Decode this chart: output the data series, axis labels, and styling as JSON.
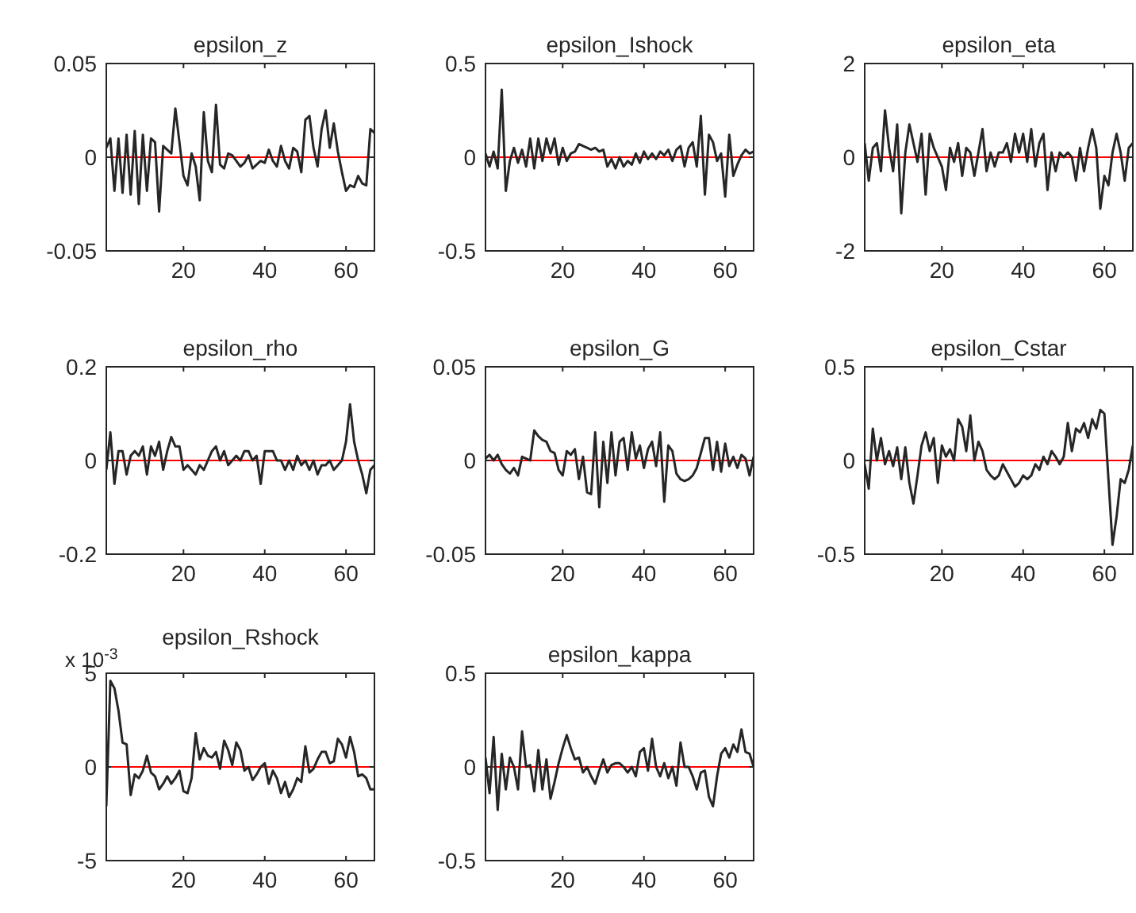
{
  "chart_data": [
    {
      "type": "line",
      "title": "epsilon_z",
      "x": [
        1,
        2,
        3,
        4,
        5,
        6,
        7,
        8,
        9,
        10,
        11,
        12,
        13,
        14,
        15,
        16,
        17,
        18,
        19,
        20,
        21,
        22,
        23,
        24,
        25,
        26,
        27,
        28,
        29,
        30,
        31,
        32,
        33,
        34,
        35,
        36,
        37,
        38,
        39,
        40,
        41,
        42,
        43,
        44,
        45,
        46,
        47,
        48,
        49,
        50,
        51,
        52,
        53,
        54,
        55,
        56,
        57,
        58,
        59,
        60,
        61,
        62,
        63,
        64,
        65,
        66,
        67
      ],
      "xlim": [
        1,
        67
      ],
      "xticks": [
        20,
        40,
        60
      ],
      "ylim": [
        -0.05,
        0.05
      ],
      "yticks": [
        -0.05,
        0,
        0.05
      ],
      "ref_lines": [
        {
          "axis": "y",
          "value": 0,
          "color": "#ff0000"
        }
      ],
      "series": [
        {
          "color": "#262626",
          "values": [
            0.005,
            0.01,
            -0.018,
            0.01,
            -0.019,
            0.012,
            -0.02,
            0.014,
            -0.025,
            0.012,
            -0.018,
            0.01,
            0.008,
            -0.029,
            0.006,
            0.004,
            0.002,
            0.026,
            0.008,
            -0.01,
            -0.015,
            0.002,
            -0.005,
            -0.023,
            0.024,
            -0.002,
            -0.008,
            0.028,
            -0.004,
            -0.006,
            0.002,
            0.001,
            -0.002,
            -0.005,
            -0.003,
            0.001,
            -0.006,
            -0.004,
            -0.002,
            -0.003,
            0.004,
            -0.002,
            -0.005,
            0.006,
            -0.002,
            -0.006,
            0.005,
            0.003,
            -0.008,
            0.02,
            0.022,
            0.005,
            -0.005,
            0.015,
            0.025,
            0.005,
            0.018,
            0.003,
            -0.008,
            -0.018,
            -0.015,
            -0.016,
            -0.01,
            -0.014,
            -0.015,
            0.015,
            0.013
          ]
        }
      ]
    },
    {
      "type": "line",
      "title": "epsilon_Ishock",
      "x": [
        1,
        2,
        3,
        4,
        5,
        6,
        7,
        8,
        9,
        10,
        11,
        12,
        13,
        14,
        15,
        16,
        17,
        18,
        19,
        20,
        21,
        22,
        23,
        24,
        25,
        26,
        27,
        28,
        29,
        30,
        31,
        32,
        33,
        34,
        35,
        36,
        37,
        38,
        39,
        40,
        41,
        42,
        43,
        44,
        45,
        46,
        47,
        48,
        49,
        50,
        51,
        52,
        53,
        54,
        55,
        56,
        57,
        58,
        59,
        60,
        61,
        62,
        63,
        64,
        65,
        66,
        67
      ],
      "xlim": [
        1,
        67
      ],
      "xticks": [
        20,
        40,
        60
      ],
      "ylim": [
        -0.5,
        0.5
      ],
      "yticks": [
        -0.5,
        0,
        0.5
      ],
      "ref_lines": [
        {
          "axis": "y",
          "value": 0,
          "color": "#ff0000"
        }
      ],
      "series": [
        {
          "color": "#262626",
          "values": [
            0.02,
            -0.05,
            0.03,
            -0.06,
            0.36,
            -0.18,
            -0.02,
            0.05,
            -0.03,
            0.04,
            -0.05,
            0.1,
            -0.06,
            0.1,
            -0.02,
            0.1,
            0.02,
            0.1,
            -0.04,
            0.05,
            -0.02,
            0.02,
            0.03,
            0.07,
            0.06,
            0.05,
            0.04,
            0.05,
            0.03,
            0.04,
            -0.05,
            -0.01,
            -0.06,
            0,
            -0.05,
            -0.02,
            -0.04,
            0.02,
            -0.03,
            0.03,
            -0.01,
            0.02,
            -0.01,
            0.03,
            0.01,
            0.04,
            -0.02,
            0.04,
            0.06,
            -0.05,
            0.05,
            0.08,
            -0.05,
            0.22,
            -0.2,
            0.12,
            0.08,
            -0.02,
            0.02,
            -0.21,
            0.12,
            -0.1,
            -0.04,
            0.01,
            0.04,
            0.02,
            0.03
          ]
        }
      ]
    },
    {
      "type": "line",
      "title": "epsilon_eta",
      "x": [
        1,
        2,
        3,
        4,
        5,
        6,
        7,
        8,
        9,
        10,
        11,
        12,
        13,
        14,
        15,
        16,
        17,
        18,
        19,
        20,
        21,
        22,
        23,
        24,
        25,
        26,
        27,
        28,
        29,
        30,
        31,
        32,
        33,
        34,
        35,
        36,
        37,
        38,
        39,
        40,
        41,
        42,
        43,
        44,
        45,
        46,
        47,
        48,
        49,
        50,
        51,
        52,
        53,
        54,
        55,
        56,
        57,
        58,
        59,
        60,
        61,
        62,
        63,
        64,
        65,
        66,
        67
      ],
      "xlim": [
        1,
        67
      ],
      "xticks": [
        20,
        40,
        60
      ],
      "ylim": [
        -2,
        2
      ],
      "yticks": [
        -2,
        0,
        2
      ],
      "ref_lines": [
        {
          "axis": "y",
          "value": 0,
          "color": "#ff0000"
        }
      ],
      "series": [
        {
          "color": "#262626",
          "values": [
            0.3,
            -0.5,
            0.2,
            0.3,
            -0.3,
            1.0,
            0.2,
            -0.3,
            0.7,
            -1.2,
            0.1,
            0.7,
            0.3,
            -0.1,
            0.5,
            -0.8,
            0.5,
            0.2,
            0,
            -0.2,
            -0.7,
            0.2,
            -0.1,
            0.3,
            -0.4,
            0.2,
            0.1,
            -0.4,
            0.1,
            0.6,
            -0.3,
            0.1,
            -0.2,
            0.1,
            0.1,
            0.3,
            -0.1,
            0.5,
            0.1,
            0.5,
            -0.1,
            0.6,
            -0.2,
            0.3,
            0.5,
            -0.7,
            0.1,
            -0.3,
            0.1,
            0,
            0.1,
            0,
            -0.5,
            0.2,
            -0.3,
            0.2,
            0.6,
            0.2,
            -1.1,
            -0.4,
            -0.6,
            0.1,
            0.5,
            0.1,
            -0.5,
            0.2,
            0.3
          ]
        }
      ]
    },
    {
      "type": "line",
      "title": "epsilon_rho",
      "x": [
        1,
        2,
        3,
        4,
        5,
        6,
        7,
        8,
        9,
        10,
        11,
        12,
        13,
        14,
        15,
        16,
        17,
        18,
        19,
        20,
        21,
        22,
        23,
        24,
        25,
        26,
        27,
        28,
        29,
        30,
        31,
        32,
        33,
        34,
        35,
        36,
        37,
        38,
        39,
        40,
        41,
        42,
        43,
        44,
        45,
        46,
        47,
        48,
        49,
        50,
        51,
        52,
        53,
        54,
        55,
        56,
        57,
        58,
        59,
        60,
        61,
        62,
        63,
        64,
        65,
        66,
        67
      ],
      "xlim": [
        1,
        67
      ],
      "xticks": [
        20,
        40,
        60
      ],
      "ylim": [
        -0.2,
        0.2
      ],
      "yticks": [
        -0.2,
        0,
        0.2
      ],
      "ref_lines": [
        {
          "axis": "y",
          "value": 0,
          "color": "#ff0000"
        }
      ],
      "series": [
        {
          "color": "#262626",
          "values": [
            -0.02,
            0.06,
            -0.05,
            0.02,
            0.02,
            -0.03,
            0.01,
            0.02,
            0.01,
            0.03,
            -0.03,
            0.03,
            0.01,
            0.04,
            -0.02,
            0.02,
            0.05,
            0.03,
            0.03,
            -0.02,
            -0.01,
            -0.02,
            -0.03,
            -0.01,
            -0.02,
            0.0,
            0.02,
            0.03,
            0.0,
            0.02,
            -0.01,
            0.0,
            0.01,
            0.0,
            0.02,
            0.02,
            0.0,
            0.01,
            -0.05,
            0.02,
            0.02,
            0.02,
            0.0,
            0.0,
            -0.02,
            0.0,
            -0.02,
            0.01,
            -0.01,
            0.0,
            -0.02,
            0.0,
            -0.03,
            -0.01,
            -0.01,
            0.0,
            -0.02,
            -0.01,
            0.0,
            0.04,
            0.12,
            0.04,
            0.0,
            -0.03,
            -0.07,
            -0.02,
            -0.01
          ]
        }
      ]
    },
    {
      "type": "line",
      "title": "epsilon_G",
      "x": [
        1,
        2,
        3,
        4,
        5,
        6,
        7,
        8,
        9,
        10,
        11,
        12,
        13,
        14,
        15,
        16,
        17,
        18,
        19,
        20,
        21,
        22,
        23,
        24,
        25,
        26,
        27,
        28,
        29,
        30,
        31,
        32,
        33,
        34,
        35,
        36,
        37,
        38,
        39,
        40,
        41,
        42,
        43,
        44,
        45,
        46,
        47,
        48,
        49,
        50,
        51,
        52,
        53,
        54,
        55,
        56,
        57,
        58,
        59,
        60,
        61,
        62,
        63,
        64,
        65,
        66,
        67
      ],
      "xlim": [
        1,
        67
      ],
      "xticks": [
        20,
        40,
        60
      ],
      "ylim": [
        -0.05,
        0.05
      ],
      "yticks": [
        -0.05,
        0,
        0.05
      ],
      "ref_lines": [
        {
          "axis": "y",
          "value": 0,
          "color": "#ff0000"
        }
      ],
      "series": [
        {
          "color": "#262626",
          "values": [
            0.001,
            0.003,
            0.0,
            0.003,
            -0.002,
            -0.005,
            -0.007,
            -0.004,
            -0.008,
            0.002,
            0.001,
            0.0,
            0.016,
            0.013,
            0.011,
            0.01,
            0.005,
            0.004,
            -0.005,
            -0.008,
            0.005,
            0.003,
            0.006,
            -0.01,
            0.002,
            -0.017,
            -0.018,
            0.015,
            -0.025,
            0.01,
            -0.012,
            0.015,
            -0.008,
            0.01,
            0.012,
            -0.005,
            0.015,
            0.001,
            0.008,
            -0.004,
            0.006,
            0.01,
            -0.003,
            0.015,
            -0.022,
            0.008,
            0.005,
            -0.007,
            -0.01,
            -0.011,
            -0.01,
            -0.008,
            -0.004,
            0.004,
            0.012,
            0.012,
            -0.005,
            0.01,
            -0.006,
            0.009,
            -0.003,
            0.002,
            -0.004,
            0.003,
            0.001,
            -0.008,
            0.002
          ]
        }
      ]
    },
    {
      "type": "line",
      "title": "epsilon_Cstar",
      "x": [
        1,
        2,
        3,
        4,
        5,
        6,
        7,
        8,
        9,
        10,
        11,
        12,
        13,
        14,
        15,
        16,
        17,
        18,
        19,
        20,
        21,
        22,
        23,
        24,
        25,
        26,
        27,
        28,
        29,
        30,
        31,
        32,
        33,
        34,
        35,
        36,
        37,
        38,
        39,
        40,
        41,
        42,
        43,
        44,
        45,
        46,
        47,
        48,
        49,
        50,
        51,
        52,
        53,
        54,
        55,
        56,
        57,
        58,
        59,
        60,
        61,
        62,
        63,
        64,
        65,
        66,
        67
      ],
      "xlim": [
        1,
        67
      ],
      "xticks": [
        20,
        40,
        60
      ],
      "ylim": [
        -0.5,
        0.5
      ],
      "yticks": [
        -0.5,
        0,
        0.5
      ],
      "ref_lines": [
        {
          "axis": "y",
          "value": 0,
          "color": "#ff0000"
        }
      ],
      "series": [
        {
          "color": "#262626",
          "values": [
            -0.02,
            -0.15,
            0.17,
            0.0,
            0.12,
            -0.02,
            0.05,
            -0.03,
            0.07,
            -0.1,
            0.07,
            -0.12,
            -0.23,
            -0.08,
            0.08,
            0.15,
            0.05,
            0.12,
            -0.12,
            0.08,
            0.02,
            0.06,
            0.0,
            0.22,
            0.18,
            0.05,
            0.24,
            0.0,
            0.1,
            0.05,
            -0.05,
            -0.08,
            -0.1,
            -0.08,
            -0.02,
            -0.06,
            -0.1,
            -0.14,
            -0.12,
            -0.08,
            -0.1,
            -0.08,
            -0.02,
            -0.05,
            0.02,
            -0.02,
            0.05,
            0.02,
            -0.02,
            0.02,
            0.2,
            0.05,
            0.17,
            0.15,
            0.2,
            0.12,
            0.22,
            0.17,
            0.27,
            0.25,
            -0.1,
            -0.45,
            -0.3,
            -0.1,
            -0.12,
            -0.05,
            0.08
          ]
        }
      ]
    },
    {
      "type": "line",
      "title": "epsilon_Rshock",
      "annotations": [
        "x 10$^{-3}$"
      ],
      "x": [
        1,
        2,
        3,
        4,
        5,
        6,
        7,
        8,
        9,
        10,
        11,
        12,
        13,
        14,
        15,
        16,
        17,
        18,
        19,
        20,
        21,
        22,
        23,
        24,
        25,
        26,
        27,
        28,
        29,
        30,
        31,
        32,
        33,
        34,
        35,
        36,
        37,
        38,
        39,
        40,
        41,
        42,
        43,
        44,
        45,
        46,
        47,
        48,
        49,
        50,
        51,
        52,
        53,
        54,
        55,
        56,
        57,
        58,
        59,
        60,
        61,
        62,
        63,
        64,
        65,
        66,
        67
      ],
      "xlim": [
        1,
        67
      ],
      "xticks": [
        20,
        40,
        60
      ],
      "ylim": [
        -5,
        5
      ],
      "yticks": [
        -5,
        0,
        5
      ],
      "ref_lines": [
        {
          "axis": "y",
          "value": 0,
          "color": "#ff0000"
        }
      ],
      "series": [
        {
          "color": "#262626",
          "values": [
            -2.1,
            4.6,
            4.2,
            3.0,
            1.3,
            1.2,
            -1.5,
            -0.4,
            -0.6,
            -0.2,
            0.6,
            -0.3,
            -0.5,
            -1.2,
            -0.9,
            -0.5,
            -0.9,
            -0.6,
            -0.2,
            -1.3,
            -1.4,
            -0.6,
            1.8,
            0.4,
            1.0,
            0.6,
            0.5,
            0.8,
            -0.1,
            1.4,
            0.9,
            0.1,
            1.3,
            0.9,
            -0.2,
            0.0,
            -0.7,
            -0.4,
            0.0,
            0.2,
            -0.9,
            -0.2,
            -0.6,
            -1.4,
            -0.8,
            -1.6,
            -1.2,
            -0.6,
            -0.8,
            1.1,
            -0.3,
            -0.1,
            0.4,
            0.8,
            0.8,
            0.2,
            0.3,
            1.5,
            1.2,
            0.5,
            1.6,
            0.8,
            -0.5,
            -0.4,
            -0.6,
            -1.2,
            -1.2
          ]
        }
      ]
    },
    {
      "type": "line",
      "title": "epsilon_kappa",
      "x": [
        1,
        2,
        3,
        4,
        5,
        6,
        7,
        8,
        9,
        10,
        11,
        12,
        13,
        14,
        15,
        16,
        17,
        18,
        19,
        20,
        21,
        22,
        23,
        24,
        25,
        26,
        27,
        28,
        29,
        30,
        31,
        32,
        33,
        34,
        35,
        36,
        37,
        38,
        39,
        40,
        41,
        42,
        43,
        44,
        45,
        46,
        47,
        48,
        49,
        50,
        51,
        52,
        53,
        54,
        55,
        56,
        57,
        58,
        59,
        60,
        61,
        62,
        63,
        64,
        65,
        66,
        67
      ],
      "xlim": [
        1,
        67
      ],
      "xticks": [
        20,
        40,
        60
      ],
      "ylim": [
        -0.5,
        0.5
      ],
      "yticks": [
        -0.5,
        0,
        0.5
      ],
      "ref_lines": [
        {
          "axis": "y",
          "value": 0,
          "color": "#ff0000"
        }
      ],
      "series": [
        {
          "color": "#262626",
          "values": [
            0.05,
            -0.14,
            0.16,
            -0.23,
            0.07,
            -0.12,
            0.05,
            0.0,
            -0.12,
            0.19,
            0.0,
            0.01,
            -0.13,
            0.09,
            -0.12,
            0.04,
            -0.17,
            -0.08,
            0.02,
            0.1,
            0.17,
            0.1,
            0.04,
            0.05,
            -0.03,
            0.0,
            -0.05,
            -0.09,
            -0.02,
            0.04,
            -0.03,
            0.01,
            0.02,
            0.02,
            0.0,
            -0.03,
            0.0,
            -0.05,
            0.08,
            0.1,
            -0.02,
            0.15,
            0.0,
            -0.05,
            0.02,
            -0.06,
            0.0,
            -0.1,
            0.13,
            0.0,
            0.0,
            -0.05,
            -0.12,
            -0.03,
            -0.02,
            -0.16,
            -0.21,
            -0.05,
            0.07,
            0.1,
            0.05,
            0.12,
            0.08,
            0.2,
            0.08,
            0.07,
            0.0
          ]
        }
      ]
    }
  ]
}
